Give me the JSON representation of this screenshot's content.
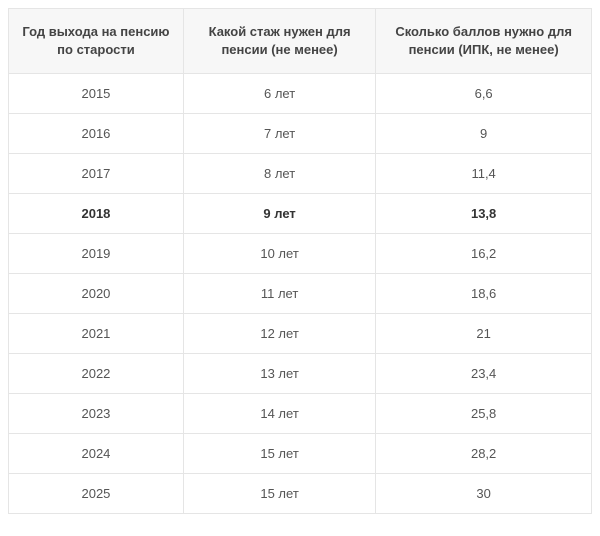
{
  "table": {
    "type": "table",
    "columns": [
      "Год выхода на пенсию по старости",
      "Какой стаж нужен для пенсии (не менее)",
      "Сколько баллов нужно для пенсии (ИПК, не менее)"
    ],
    "rows": [
      {
        "year": "2015",
        "experience": "6 лет",
        "points": "6,6",
        "highlighted": false
      },
      {
        "year": "2016",
        "experience": "7 лет",
        "points": "9",
        "highlighted": false
      },
      {
        "year": "2017",
        "experience": "8 лет",
        "points": "11,4",
        "highlighted": false
      },
      {
        "year": "2018",
        "experience": "9 лет",
        "points": "13,8",
        "highlighted": true
      },
      {
        "year": "2019",
        "experience": "10 лет",
        "points": "16,2",
        "highlighted": false
      },
      {
        "year": "2020",
        "experience": "11 лет",
        "points": "18,6",
        "highlighted": false
      },
      {
        "year": "2021",
        "experience": "12 лет",
        "points": "21",
        "highlighted": false
      },
      {
        "year": "2022",
        "experience": "13 лет",
        "points": "23,4",
        "highlighted": false
      },
      {
        "year": "2023",
        "experience": "14 лет",
        "points": "25,8",
        "highlighted": false
      },
      {
        "year": "2024",
        "experience": "15 лет",
        "points": "28,2",
        "highlighted": false
      },
      {
        "year": "2025",
        "experience": "15 лет",
        "points": "30",
        "highlighted": false
      }
    ],
    "header_bg": "#f7f7f7",
    "border_color": "#e5e5e5",
    "text_color": "#555555",
    "header_text_color": "#444444",
    "highlight_text_color": "#333333",
    "font_size": 13
  }
}
